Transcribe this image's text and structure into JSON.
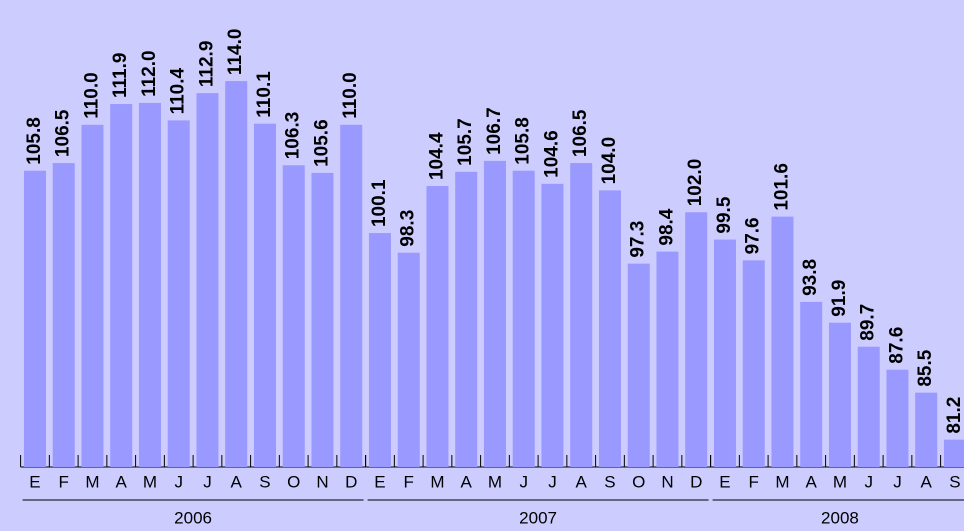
{
  "chart_data": {
    "type": "bar",
    "color": "#9999ff",
    "background": "#ccccff",
    "ylim": [
      78.7,
      120.5
    ],
    "groups": [
      {
        "name": "2006",
        "categories": [
          "E",
          "F",
          "M",
          "A",
          "M",
          "J",
          "J",
          "A",
          "S",
          "O",
          "N",
          "D"
        ],
        "values": [
          105.8,
          106.5,
          110.0,
          111.9,
          112.0,
          110.4,
          112.9,
          114.0,
          110.1,
          106.3,
          105.6,
          110.0
        ],
        "value_labels": [
          "105.8",
          "106.5",
          "110.0",
          "111.9",
          "112.0",
          "110.4",
          "112.9",
          "114.0",
          "110.1",
          "106.3",
          "105.6",
          "110.0"
        ]
      },
      {
        "name": "2007",
        "categories": [
          "E",
          "F",
          "M",
          "A",
          "M",
          "J",
          "J",
          "A",
          "S",
          "O",
          "N",
          "D"
        ],
        "values": [
          100.1,
          98.3,
          104.4,
          105.7,
          106.7,
          105.8,
          104.6,
          106.5,
          104.0,
          97.3,
          98.4,
          102.0
        ],
        "value_labels": [
          "100.1",
          "98.3",
          "104.4",
          "105.7",
          "106.7",
          "105.8",
          "104.6",
          "106.5",
          "104.0",
          "97.3",
          "98.4",
          "102.0"
        ]
      },
      {
        "name": "2008",
        "categories": [
          "E",
          "F",
          "M",
          "A",
          "M",
          "J",
          "J",
          "A",
          "S"
        ],
        "values": [
          99.5,
          97.6,
          101.6,
          93.8,
          91.9,
          89.7,
          87.6,
          85.5,
          81.2
        ],
        "value_labels": [
          "99.5",
          "97.6",
          "101.6",
          "93.8",
          "91.9",
          "89.7",
          "87.6",
          "85.5",
          "81.2"
        ]
      }
    ]
  }
}
